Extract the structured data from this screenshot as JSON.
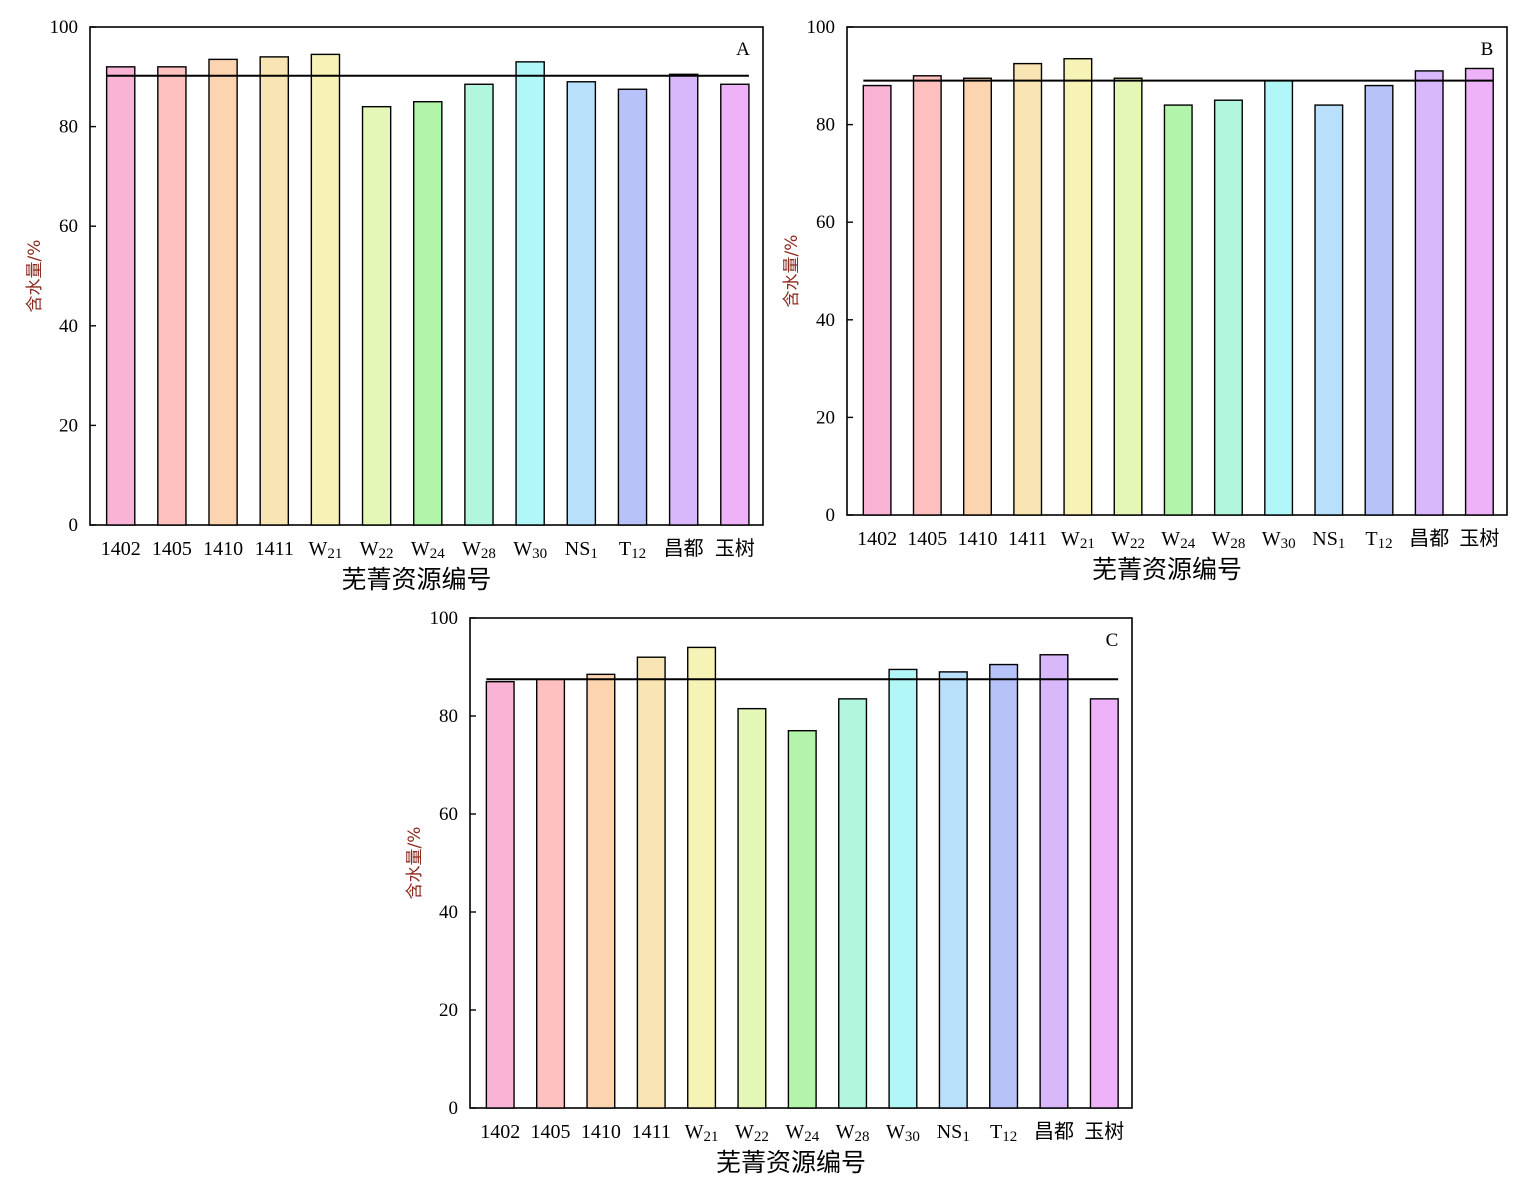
{
  "chart_data": [
    {
      "type": "bar",
      "panel_label": "A",
      "categories": [
        "1402",
        "1405",
        "1410",
        "1411",
        "W21",
        "W22",
        "W24",
        "W28",
        "W30",
        "NS1",
        "T12",
        "昌都",
        "玉树"
      ],
      "values": [
        92,
        92,
        93.5,
        94,
        94.5,
        84,
        85,
        88.5,
        93,
        89,
        87.5,
        90.5,
        88.5
      ],
      "mean_line": 90.2,
      "xlabel": "芜菁资源编号",
      "ylabel": "含水量/%",
      "ylim": [
        0,
        100
      ],
      "yticks": [
        0,
        20,
        40,
        60,
        80,
        100
      ],
      "grid": false
    },
    {
      "type": "bar",
      "panel_label": "B",
      "categories": [
        "1402",
        "1405",
        "1410",
        "1411",
        "W21",
        "W22",
        "W24",
        "W28",
        "W30",
        "NS1",
        "T12",
        "昌都",
        "玉树"
      ],
      "values": [
        88,
        90,
        89.5,
        92.5,
        93.5,
        89.5,
        84,
        85,
        89,
        84,
        88,
        91,
        91.5
      ],
      "mean_line": 89,
      "xlabel": "芜菁资源编号",
      "ylabel": "含水量/%",
      "ylim": [
        0,
        100
      ],
      "yticks": [
        0,
        20,
        40,
        60,
        80,
        100
      ],
      "grid": false
    },
    {
      "type": "bar",
      "panel_label": "C",
      "categories": [
        "1402",
        "1405",
        "1410",
        "1411",
        "W21",
        "W22",
        "W24",
        "W28",
        "W30",
        "NS1",
        "T12",
        "昌都",
        "玉树"
      ],
      "values": [
        87,
        87.5,
        88.5,
        92,
        94,
        81.5,
        77,
        83.5,
        89.5,
        89,
        90.5,
        92.5,
        83.5
      ],
      "mean_line": 87.5,
      "xlabel": "芜菁资源编号",
      "ylabel": "含水量/%",
      "ylim": [
        0,
        100
      ],
      "yticks": [
        0,
        20,
        40,
        60,
        80,
        100
      ],
      "grid": false
    }
  ],
  "bar_colors": [
    "#f9b3d4",
    "#ffc0c0",
    "#fcd4b0",
    "#f9e4b3",
    "#f7f2b6",
    "#e5f7b7",
    "#b2f5aa",
    "#b2f7dd",
    "#b2f7f7",
    "#b8e0fb",
    "#b6c2f8",
    "#d9b7fb",
    "#edb2f8"
  ]
}
